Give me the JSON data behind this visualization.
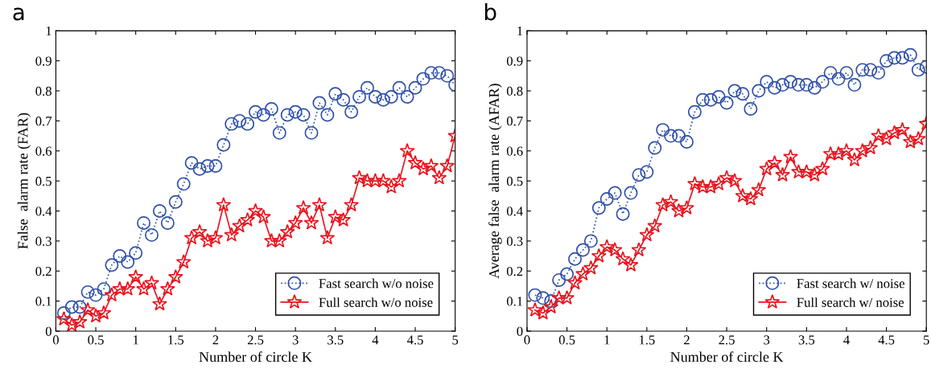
{
  "chart_data": [
    {
      "type": "line",
      "title": "a",
      "xlabel": "Number of circle K",
      "ylabel": "False  alarm rate (FAR)",
      "x": [
        0.1,
        0.2,
        0.3,
        0.4,
        0.5,
        0.6,
        0.7,
        0.8,
        0.9,
        1.0,
        1.1,
        1.2,
        1.3,
        1.4,
        1.5,
        1.6,
        1.7,
        1.8,
        1.9,
        2.0,
        2.1,
        2.2,
        2.3,
        2.4,
        2.5,
        2.6,
        2.7,
        2.8,
        2.9,
        3.0,
        3.1,
        3.2,
        3.3,
        3.4,
        3.5,
        3.6,
        3.7,
        3.8,
        3.9,
        4.0,
        4.1,
        4.2,
        4.3,
        4.4,
        4.5,
        4.6,
        4.7,
        4.8,
        4.9,
        5.0
      ],
      "series": [
        {
          "name": "Fast search w/o noise",
          "color": "#2e4fa8",
          "marker": "circle",
          "line_style": "dotted",
          "values": [
            0.06,
            0.08,
            0.08,
            0.13,
            0.12,
            0.14,
            0.22,
            0.25,
            0.23,
            0.26,
            0.36,
            0.32,
            0.4,
            0.36,
            0.43,
            0.49,
            0.56,
            0.54,
            0.55,
            0.55,
            0.62,
            0.69,
            0.7,
            0.69,
            0.73,
            0.72,
            0.74,
            0.66,
            0.72,
            0.73,
            0.72,
            0.66,
            0.76,
            0.72,
            0.79,
            0.77,
            0.73,
            0.78,
            0.81,
            0.78,
            0.77,
            0.78,
            0.81,
            0.78,
            0.81,
            0.84,
            0.86,
            0.86,
            0.85,
            0.82
          ]
        },
        {
          "name": "Full search w/o noise",
          "color": "#e8141e",
          "marker": "star",
          "line_style": "solid",
          "values": [
            0.04,
            0.02,
            0.03,
            0.07,
            0.05,
            0.06,
            0.12,
            0.14,
            0.14,
            0.18,
            0.14,
            0.16,
            0.09,
            0.14,
            0.18,
            0.23,
            0.31,
            0.33,
            0.3,
            0.31,
            0.42,
            0.32,
            0.35,
            0.37,
            0.4,
            0.38,
            0.3,
            0.3,
            0.33,
            0.36,
            0.41,
            0.36,
            0.42,
            0.31,
            0.38,
            0.37,
            0.42,
            0.51,
            0.5,
            0.5,
            0.5,
            0.48,
            0.5,
            0.6,
            0.56,
            0.54,
            0.55,
            0.51,
            0.55,
            0.65
          ]
        }
      ],
      "xlim": [
        0,
        5
      ],
      "xticks": [
        0,
        0.5,
        1,
        1.5,
        2,
        2.5,
        3,
        3.5,
        4,
        4.5,
        5
      ],
      "ylim": [
        0,
        1
      ],
      "yticks": [
        0,
        0.1,
        0.2,
        0.3,
        0.4,
        0.5,
        0.6,
        0.7,
        0.8,
        0.9,
        1
      ],
      "grid": false,
      "legend": "bottom right"
    },
    {
      "type": "line",
      "title": "b",
      "xlabel": "Number of circle K",
      "ylabel": "Average false  alarm rate (AFAR)",
      "x": [
        0.1,
        0.2,
        0.3,
        0.4,
        0.5,
        0.6,
        0.7,
        0.8,
        0.9,
        1.0,
        1.1,
        1.2,
        1.3,
        1.4,
        1.5,
        1.6,
        1.7,
        1.8,
        1.9,
        2.0,
        2.1,
        2.2,
        2.3,
        2.4,
        2.5,
        2.6,
        2.7,
        2.8,
        2.9,
        3.0,
        3.1,
        3.2,
        3.3,
        3.4,
        3.5,
        3.6,
        3.7,
        3.8,
        3.9,
        4.0,
        4.1,
        4.2,
        4.3,
        4.4,
        4.5,
        4.6,
        4.7,
        4.8,
        4.9,
        5.0
      ],
      "series": [
        {
          "name": "Fast search w/ noise",
          "color": "#2e4fa8",
          "marker": "circle",
          "line_style": "dotted",
          "values": [
            0.12,
            0.11,
            0.1,
            0.17,
            0.19,
            0.24,
            0.27,
            0.3,
            0.41,
            0.44,
            0.46,
            0.39,
            0.46,
            0.52,
            0.53,
            0.61,
            0.67,
            0.65,
            0.65,
            0.63,
            0.73,
            0.77,
            0.77,
            0.78,
            0.76,
            0.8,
            0.79,
            0.74,
            0.8,
            0.83,
            0.81,
            0.82,
            0.83,
            0.82,
            0.82,
            0.81,
            0.83,
            0.86,
            0.84,
            0.86,
            0.82,
            0.87,
            0.87,
            0.86,
            0.9,
            0.91,
            0.91,
            0.92,
            0.87,
            0.88
          ]
        },
        {
          "name": "Full search w/ noise",
          "color": "#e8141e",
          "marker": "star",
          "line_style": "solid",
          "values": [
            0.07,
            0.06,
            0.08,
            0.11,
            0.11,
            0.16,
            0.19,
            0.21,
            0.25,
            0.28,
            0.27,
            0.24,
            0.22,
            0.27,
            0.32,
            0.35,
            0.42,
            0.43,
            0.4,
            0.41,
            0.49,
            0.48,
            0.48,
            0.49,
            0.51,
            0.5,
            0.45,
            0.44,
            0.47,
            0.54,
            0.56,
            0.52,
            0.58,
            0.53,
            0.53,
            0.52,
            0.54,
            0.59,
            0.59,
            0.6,
            0.57,
            0.6,
            0.61,
            0.65,
            0.64,
            0.66,
            0.67,
            0.63,
            0.64,
            0.69
          ]
        }
      ],
      "xlim": [
        0,
        5
      ],
      "xticks": [
        0,
        0.5,
        1,
        1.5,
        2,
        2.5,
        3,
        3.5,
        4,
        4.5,
        5
      ],
      "ylim": [
        0,
        1
      ],
      "yticks": [
        0,
        0.1,
        0.2,
        0.3,
        0.4,
        0.5,
        0.6,
        0.7,
        0.8,
        0.9,
        1
      ],
      "grid": false,
      "legend": "bottom right"
    }
  ]
}
